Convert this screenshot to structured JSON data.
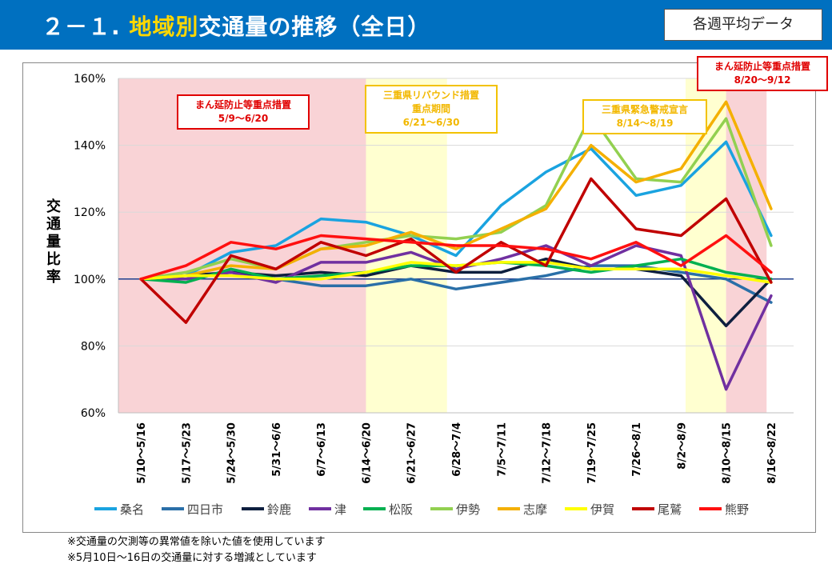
{
  "header": {
    "title_prefix": "２－１. ",
    "title_highlight": "地域別",
    "title_rest": "交通量の推移（全日）",
    "badge": "各週平均データ"
  },
  "notes": [
    "※交通量の欠測等の異常値を除いた値を使用しています",
    "※5月10日～16日の交通量に対する増減としています"
  ],
  "annotations": {
    "emergency1": [
      "まん延防止等重点措置",
      "5/9～6/20"
    ],
    "rebound": [
      "三重県リバウンド措置",
      "重点期間",
      "6/21～6/30"
    ],
    "emergency_decl": [
      "三重県緊急警戒宣言",
      "8/14～8/19"
    ],
    "emergency2": [
      "まん延防止等重点措置",
      "8/20～9/12"
    ]
  },
  "colors": {
    "pink_band": "#f9d3d6",
    "yellow_band": "#ffffd0",
    "baseline": "#1f3f8f",
    "header": "#0070c0"
  },
  "chart_data": {
    "type": "line",
    "ylabel": "交通量比率",
    "ylim": [
      60,
      160
    ],
    "yticks": [
      "60%",
      "80%",
      "100%",
      "120%",
      "140%",
      "160%"
    ],
    "ytick_values": [
      60,
      80,
      100,
      120,
      140,
      160
    ],
    "categories": [
      "5/10～5/16",
      "5/17～5/23",
      "5/24～5/30",
      "5/31～6/6",
      "6/7～6/13",
      "6/14～6/20",
      "6/21～6/27",
      "6/28～7/4",
      "7/5～7/11",
      "7/12～7/18",
      "7/19～7/25",
      "7/26～8/1",
      "8/2～8/9",
      "8/10～8/15",
      "8/16～8/22"
    ],
    "bands": [
      {
        "from": 0,
        "to": 5.5,
        "color": "pink"
      },
      {
        "from": 5.5,
        "to": 7.3,
        "color": "yellow"
      },
      {
        "from": 12.6,
        "to": 13.5,
        "color": "yellow"
      },
      {
        "from": 13.5,
        "to": 14.4,
        "color": "pink"
      }
    ],
    "series": [
      {
        "name": "桑名",
        "color": "#1aa3e0",
        "values": [
          100,
          101,
          108,
          110,
          118,
          117,
          113,
          107,
          122,
          132,
          139,
          125,
          128,
          141,
          113
        ]
      },
      {
        "name": "四日市",
        "color": "#2a6fa8",
        "values": [
          100,
          100,
          102,
          100,
          98,
          98,
          100,
          97,
          99,
          101,
          104,
          104,
          102,
          100,
          93
        ]
      },
      {
        "name": "鈴鹿",
        "color": "#0e1f3f",
        "values": [
          100,
          101,
          102,
          101,
          102,
          101,
          104,
          102,
          102,
          106,
          103,
          103,
          101,
          86,
          100
        ]
      },
      {
        "name": "津",
        "color": "#7030a0",
        "values": [
          100,
          100,
          102,
          99,
          105,
          105,
          108,
          103,
          106,
          110,
          104,
          110,
          107,
          67,
          95
        ]
      },
      {
        "name": "松阪",
        "color": "#00b050",
        "values": [
          100,
          99,
          103,
          100,
          101,
          102,
          104,
          104,
          105,
          104,
          102,
          104,
          106,
          102,
          100
        ]
      },
      {
        "name": "伊勢",
        "color": "#92d050",
        "values": [
          100,
          102,
          106,
          103,
          109,
          111,
          113,
          112,
          114,
          122,
          149,
          130,
          129,
          148,
          110
        ]
      },
      {
        "name": "志摩",
        "color": "#f4b000",
        "values": [
          100,
          101,
          104,
          103,
          109,
          110,
          114,
          109,
          115,
          121,
          140,
          129,
          133,
          153,
          121
        ]
      },
      {
        "name": "伊賀",
        "color": "#ffff00",
        "values": [
          100,
          101,
          101,
          100,
          100,
          102,
          105,
          104,
          105,
          105,
          103,
          103,
          103,
          101,
          99
        ]
      },
      {
        "name": "尾鷲",
        "color": "#c00000",
        "values": [
          100,
          87,
          107,
          103,
          111,
          107,
          112,
          102,
          111,
          104,
          130,
          115,
          113,
          124,
          99
        ]
      },
      {
        "name": "熊野",
        "color": "#ff1010",
        "values": [
          100,
          104,
          111,
          109,
          113,
          112,
          111,
          110,
          110,
          109,
          106,
          111,
          104,
          113,
          102
        ]
      }
    ]
  }
}
